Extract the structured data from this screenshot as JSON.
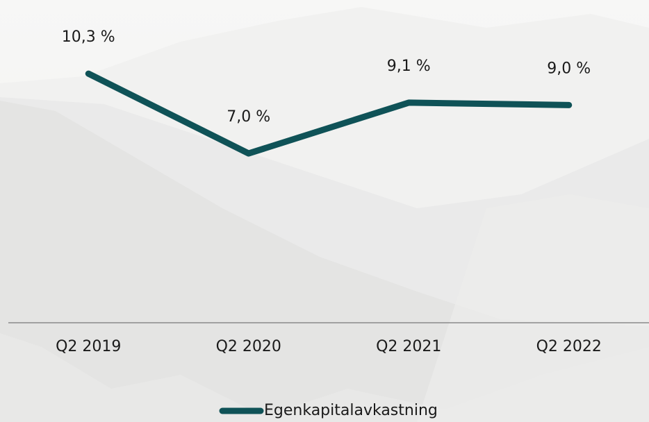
{
  "chart_data": {
    "type": "line",
    "categories": [
      "Q2 2019",
      "Q2 2020",
      "Q2 2021",
      "Q2 2022"
    ],
    "series": [
      {
        "name": "Egenkapitalavkastning",
        "color": "#0f5257",
        "values": [
          10.3,
          7.0,
          9.1,
          9.0
        ],
        "value_labels": [
          "10,3 %",
          "7,0 %",
          "9,1 %",
          "9,0 %"
        ]
      }
    ],
    "ylim": [
      0,
      13
    ],
    "legend": "bottom"
  }
}
